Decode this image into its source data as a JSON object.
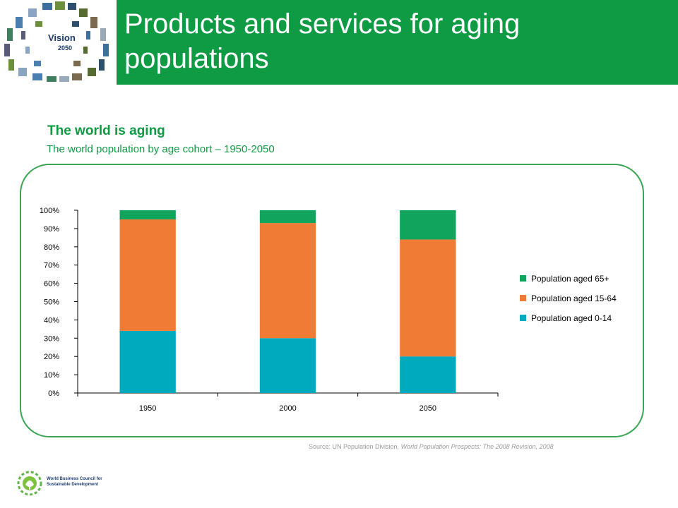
{
  "slide": {
    "title": "Products and services for aging populations",
    "logo_text": "Vision",
    "logo_year": "2050",
    "org_line1": "World Business Council for",
    "org_line2": "Sustainable Development"
  },
  "colors": {
    "brand_green": "#0f9a44",
    "panel_border": "#3aa652",
    "series_65_plus": "#11a45c",
    "series_15_64": "#f07b35",
    "series_0_14": "#00aabe"
  },
  "chart_heading": "The world is aging",
  "chart_subheading": "The world population by age cohort – 1950-2050",
  "source": {
    "prefix": "Source: UN Population Division, ",
    "title": "World Population Prospects: The 2008 Revision, 2008"
  },
  "chart_data": {
    "type": "bar",
    "stacked": true,
    "categories": [
      "1950",
      "2000",
      "2050"
    ],
    "series": [
      {
        "name": "Population  aged 0-14",
        "color": "#00aabe",
        "values": [
          34,
          30,
          20
        ]
      },
      {
        "name": "Population  aged 15-64",
        "color": "#f07b35",
        "values": [
          61,
          63,
          64
        ]
      },
      {
        "name": "Population  aged 65+",
        "color": "#11a45c",
        "values": [
          5,
          7,
          16
        ]
      }
    ],
    "legend_order": [
      "Population  aged 65+",
      "Population  aged 15-64",
      "Population  aged 0-14"
    ],
    "ylim": [
      0,
      100
    ],
    "yticks": [
      "0%",
      "10%",
      "20%",
      "30%",
      "40%",
      "50%",
      "60%",
      "70%",
      "80%",
      "90%",
      "100%"
    ],
    "legend_position": "right",
    "grid": false
  }
}
